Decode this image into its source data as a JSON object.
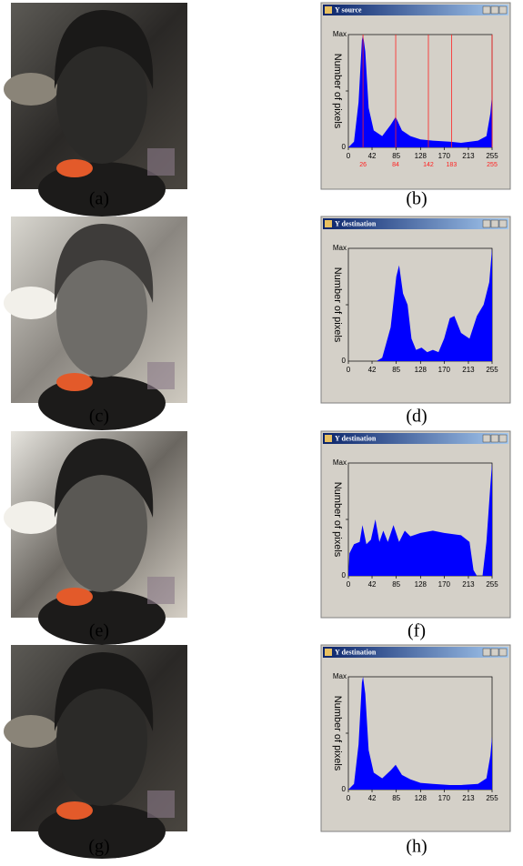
{
  "panels": [
    {
      "caption": "(a)"
    },
    {
      "caption": "(b)",
      "window": {
        "title": "Y source",
        "y_axis_label": "Number of pixels",
        "y_max_label": "Max",
        "y_zero_label": "0",
        "x_ticks": [
          0,
          42,
          85,
          128,
          170,
          213,
          255
        ],
        "markers": [
          26,
          84,
          142,
          183,
          255
        ]
      }
    },
    {
      "caption": "(c)"
    },
    {
      "caption": "(d)",
      "window": {
        "title": "Y destination",
        "y_axis_label": "Number of pixels",
        "y_max_label": "Max",
        "y_zero_label": "0",
        "x_ticks": [
          0,
          42,
          85,
          128,
          170,
          213,
          255
        ]
      }
    },
    {
      "caption": "(e)"
    },
    {
      "caption": "(f)",
      "window": {
        "title": "Y destination",
        "y_axis_label": "Number of pixels",
        "y_max_label": "Max",
        "y_zero_label": "0",
        "x_ticks": [
          0,
          42,
          85,
          128,
          170,
          213,
          255
        ]
      }
    },
    {
      "caption": "(g)"
    },
    {
      "caption": "(h)",
      "window": {
        "title": "Y destination",
        "y_axis_label": "Number of pixels",
        "y_max_label": "Max",
        "y_zero_label": "0",
        "x_ticks": [
          0,
          42,
          85,
          128,
          170,
          213,
          255
        ]
      }
    }
  ]
}
